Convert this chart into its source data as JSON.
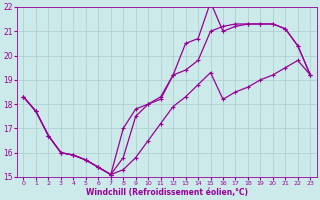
{
  "xlabel": "Windchill (Refroidissement éolien,°C)",
  "xlim": [
    -0.5,
    23.5
  ],
  "ylim": [
    15,
    22
  ],
  "xticks": [
    0,
    1,
    2,
    3,
    4,
    5,
    6,
    7,
    8,
    9,
    10,
    11,
    12,
    13,
    14,
    15,
    16,
    17,
    18,
    19,
    20,
    21,
    22,
    23
  ],
  "yticks": [
    15,
    16,
    17,
    18,
    19,
    20,
    21,
    22
  ],
  "bg_color": "#cceaea",
  "grid_color": "#aacccc",
  "line_color": "#990099",
  "marker": "+",
  "markersize": 3,
  "linewidth": 0.9,
  "series1_x": [
    0,
    1,
    2,
    3,
    4,
    5,
    6,
    7,
    8,
    9,
    10,
    11,
    12,
    13,
    14,
    15,
    16,
    17,
    18,
    19,
    20,
    21,
    22,
    23
  ],
  "series1_y": [
    18.3,
    17.7,
    16.7,
    16.0,
    15.9,
    15.7,
    15.4,
    15.1,
    17.0,
    17.8,
    18.0,
    18.2,
    19.2,
    20.5,
    20.7,
    22.2,
    21.0,
    21.2,
    21.3,
    21.3,
    21.3,
    21.1,
    20.4,
    19.2
  ],
  "series2_x": [
    0,
    1,
    2,
    3,
    4,
    5,
    6,
    7,
    8,
    9,
    10,
    11,
    12,
    13,
    14,
    15,
    16,
    17,
    18,
    19,
    20,
    21,
    22,
    23
  ],
  "series2_y": [
    18.3,
    17.7,
    16.7,
    16.0,
    15.9,
    15.7,
    15.4,
    15.1,
    15.8,
    17.5,
    18.0,
    18.3,
    19.2,
    19.4,
    19.8,
    21.0,
    21.2,
    21.3,
    21.3,
    21.3,
    21.3,
    21.1,
    20.4,
    19.2
  ],
  "series3_x": [
    0,
    1,
    2,
    3,
    4,
    5,
    6,
    7,
    8,
    9,
    10,
    11,
    12,
    13,
    14,
    15,
    16,
    17,
    18,
    19,
    20,
    21,
    22,
    23
  ],
  "series3_y": [
    18.3,
    17.7,
    16.7,
    16.0,
    15.9,
    15.7,
    15.4,
    15.1,
    15.3,
    15.8,
    16.5,
    17.2,
    17.9,
    18.3,
    18.8,
    19.3,
    18.2,
    18.5,
    18.7,
    19.0,
    19.2,
    19.5,
    19.8,
    19.2
  ]
}
